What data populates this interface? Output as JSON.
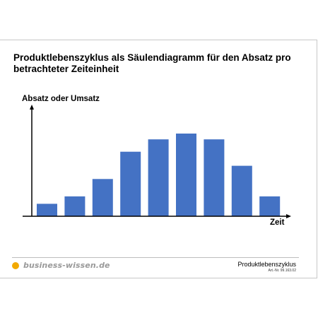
{
  "title_lines": [
    "Produktlebenszyklus als Säulendiagramm für den Absatz pro",
    "betrachteter Zeiteinheit"
  ],
  "footer": {
    "logo_text": "business-wissen.de",
    "doc_name": "Produktlebenszyklus",
    "art_nr": "Art.-Nr. 99.163.02"
  },
  "colors": {
    "bar": "#4472c4",
    "axis": "#000000",
    "logo_dot": "#f2a900"
  },
  "chart_data": {
    "type": "bar",
    "title": "Produktlebenszyklus als Säulendiagramm für den Absatz pro betrachteter Zeiteinheit",
    "xlabel": "Zeit",
    "ylabel": "Absatz oder Umsatz",
    "categories": [
      "1",
      "2",
      "3",
      "4",
      "5",
      "6",
      "7",
      "8",
      "9"
    ],
    "values": [
      15,
      24,
      45,
      78,
      93,
      100,
      93,
      61,
      24
    ],
    "ylim": [
      0,
      100
    ],
    "grid": false,
    "legend": "none",
    "tick_labels_shown": false
  }
}
